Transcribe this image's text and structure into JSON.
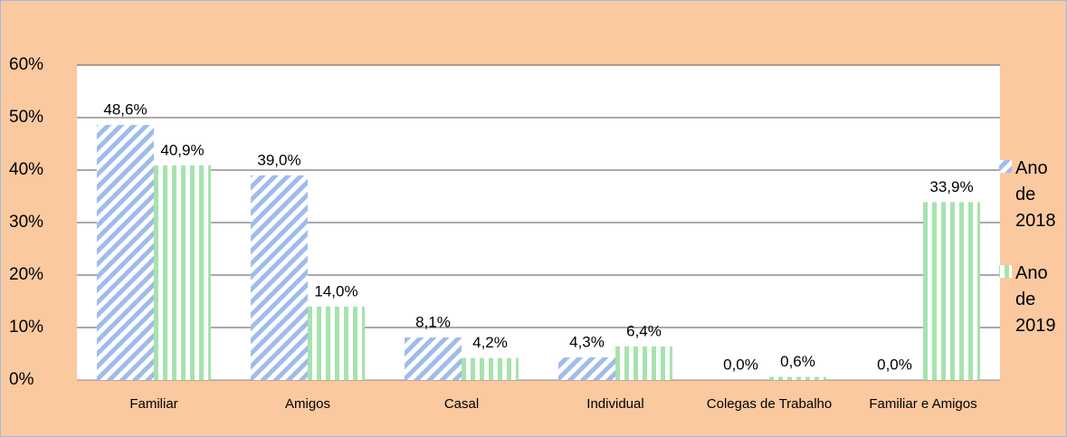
{
  "chart_data": {
    "type": "bar",
    "categories": [
      "Familiar",
      "Amigos",
      "Casal",
      "Individual",
      "Colegas de Trabalho",
      "Familiar e Amigos"
    ],
    "series": [
      {
        "name": "Ano de 2018",
        "color": "#9fbcec",
        "values": [
          48.6,
          39.0,
          8.1,
          4.3,
          0.0,
          0.0
        ],
        "value_labels": [
          "48,6%",
          "39,0%",
          "8,1%",
          "4,3%",
          "0,0%",
          "0,0%"
        ]
      },
      {
        "name": "Ano de 2019",
        "color": "#a6e3ae",
        "values": [
          40.9,
          14.0,
          4.2,
          6.4,
          0.6,
          33.9
        ],
        "value_labels": [
          "40,9%",
          "14,0%",
          "4,2%",
          "6,4%",
          "0,6%",
          "33,9%"
        ]
      }
    ],
    "ylim": [
      0,
      60
    ],
    "yticks": [
      {
        "value": 0,
        "label": "0%"
      },
      {
        "value": 10,
        "label": "10%"
      },
      {
        "value": 20,
        "label": "20%"
      },
      {
        "value": 30,
        "label": "30%"
      },
      {
        "value": 40,
        "label": "40%"
      },
      {
        "value": 50,
        "label": "50%"
      },
      {
        "value": 60,
        "label": "60%"
      }
    ],
    "grid": true,
    "legend": "right"
  }
}
